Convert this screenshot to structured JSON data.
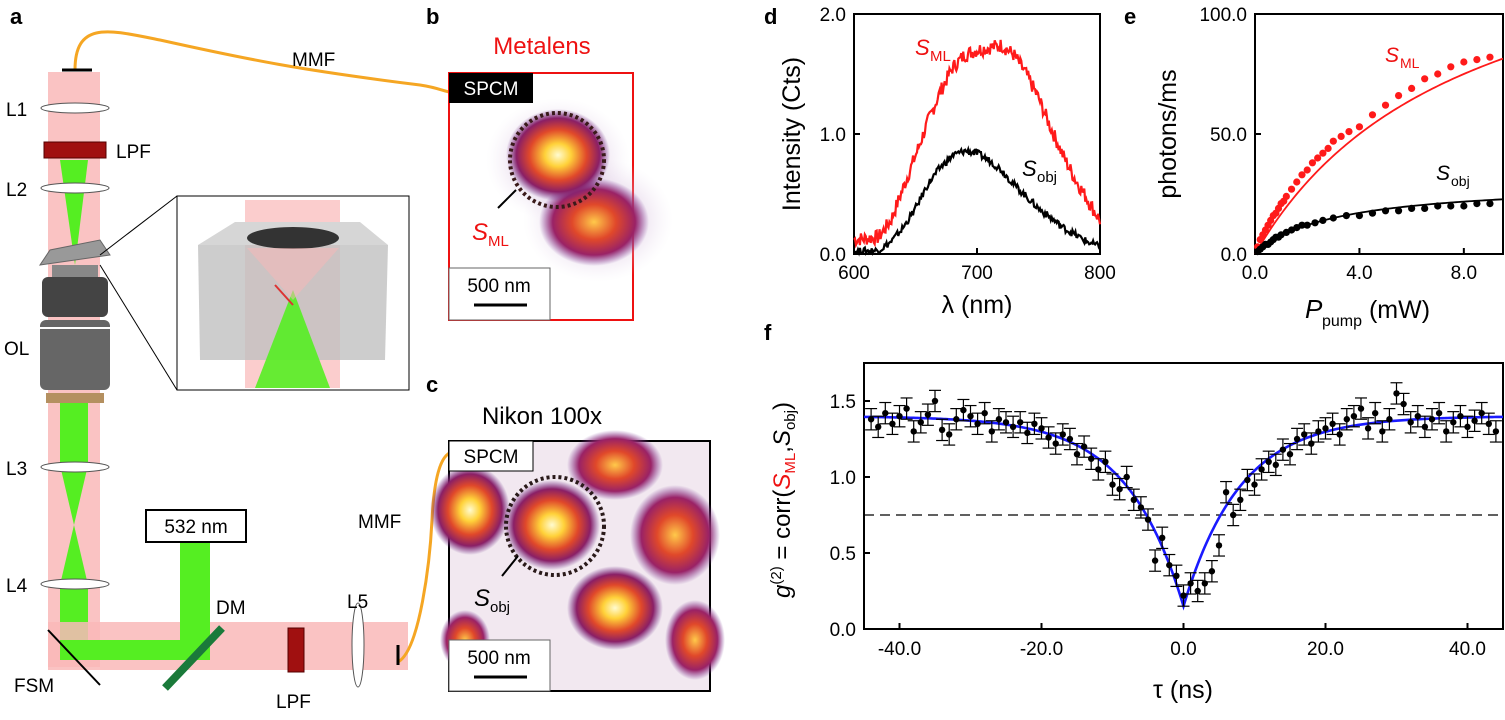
{
  "panels": {
    "a": "a",
    "b": "b",
    "c": "c",
    "d": "d",
    "e": "e",
    "f": "f"
  },
  "setup": {
    "lenses": [
      "L1",
      "L2",
      "L3",
      "L4",
      "L5"
    ],
    "lpf_top": "LPF",
    "lpf_bottom": "LPF",
    "ol": "OL",
    "mmf_top": "MMF",
    "mmf_bottom": "MMF",
    "laser": "532 nm",
    "dm": "DM",
    "fsm": "FSM"
  },
  "image_b": {
    "title": "Metalens",
    "spcm": "SPCM",
    "s_main": "S",
    "s_sub": "ML",
    "scalebar": "500 nm"
  },
  "image_c": {
    "title": "Nikon 100x",
    "spcm": "SPCM",
    "s_main": "S",
    "s_sub": "obj",
    "scalebar": "500 nm"
  },
  "chart_data": [
    {
      "panel": "d",
      "type": "line",
      "xlabel": "λ (nm)",
      "ylabel": "Intensity (Cts)",
      "xlim": [
        600,
        800
      ],
      "ylim": [
        0,
        2.0
      ],
      "xticks": [
        "600",
        "700",
        "800"
      ],
      "yticks": [
        "0.0",
        "1.0",
        "2.0"
      ],
      "series": [
        {
          "name": "S_ML",
          "label_main": "S",
          "label_sub": "ML",
          "color": "#ff1a1a",
          "x": [
            600,
            620,
            630,
            640,
            650,
            660,
            670,
            680,
            690,
            700,
            710,
            720,
            730,
            740,
            750,
            760,
            770,
            780,
            790,
            800
          ],
          "y": [
            0.12,
            0.14,
            0.28,
            0.55,
            0.82,
            1.1,
            1.35,
            1.55,
            1.66,
            1.7,
            1.72,
            1.74,
            1.66,
            1.5,
            1.3,
            1.05,
            0.82,
            0.62,
            0.45,
            0.28
          ]
        },
        {
          "name": "S_obj",
          "label_main": "S",
          "label_sub": "obj",
          "color": "#000000",
          "x": [
            600,
            620,
            630,
            640,
            650,
            660,
            670,
            680,
            690,
            700,
            710,
            720,
            730,
            740,
            750,
            760,
            770,
            780,
            790,
            800
          ],
          "y": [
            0.02,
            0.03,
            0.1,
            0.22,
            0.38,
            0.58,
            0.72,
            0.82,
            0.86,
            0.84,
            0.78,
            0.7,
            0.58,
            0.48,
            0.38,
            0.3,
            0.22,
            0.16,
            0.1,
            0.06
          ]
        }
      ]
    },
    {
      "panel": "e",
      "type": "scatter",
      "xlabel_main": "P",
      "xlabel_sub": "pump",
      "xlabel_unit": " (mW)",
      "ylabel": "photons/ms",
      "xlim": [
        0,
        9.5
      ],
      "ylim": [
        0,
        100
      ],
      "xticks": [
        "0.0",
        "4.0",
        "8.0"
      ],
      "yticks": [
        "0.0",
        "50.0",
        "100.0"
      ],
      "series": [
        {
          "name": "S_ML",
          "label_main": "S",
          "label_sub": "ML",
          "color": "#ff1a1a",
          "x": [
            0.1,
            0.2,
            0.3,
            0.4,
            0.5,
            0.6,
            0.7,
            0.8,
            0.9,
            1.0,
            1.1,
            1.2,
            1.4,
            1.6,
            1.8,
            2.0,
            2.2,
            2.4,
            2.6,
            2.8,
            3.0,
            3.3,
            3.6,
            4.0,
            4.5,
            5.0,
            5.5,
            6.0,
            6.5,
            7.0,
            7.5,
            8.0,
            8.5,
            9.0
          ],
          "y": [
            3,
            6,
            8,
            10,
            12,
            14,
            16,
            17,
            19,
            21,
            22,
            24,
            27,
            30,
            33,
            35,
            38,
            40,
            42,
            44,
            47,
            49,
            51,
            53,
            58,
            62,
            66,
            69,
            73,
            75,
            78,
            80,
            81,
            82
          ],
          "fit": {
            "Imax": 150,
            "Psat": 8.0
          }
        },
        {
          "name": "S_obj",
          "label_main": "S",
          "label_sub": "obj",
          "color": "#000000",
          "x": [
            0.1,
            0.2,
            0.3,
            0.4,
            0.5,
            0.6,
            0.7,
            0.8,
            0.9,
            1.0,
            1.2,
            1.4,
            1.6,
            1.8,
            2.0,
            2.3,
            2.6,
            3.0,
            3.5,
            4.0,
            4.5,
            5.0,
            5.5,
            6.0,
            6.5,
            7.0,
            7.5,
            8.0,
            8.5,
            9.0
          ],
          "y": [
            1,
            2,
            3,
            4,
            4,
            5,
            6,
            7,
            7,
            8,
            9,
            10,
            11,
            12,
            12,
            13,
            14,
            15,
            16,
            16,
            17,
            18,
            18,
            19,
            19,
            20,
            20,
            20,
            21,
            21
          ],
          "fit": {
            "Imax": 30,
            "Psat": 3.0
          }
        }
      ]
    },
    {
      "panel": "f",
      "type": "scatter",
      "xlabel": "τ (ns)",
      "ylabel_parts": [
        "g",
        "(2)",
        " = corr(",
        "S",
        "ML",
        ",",
        "S",
        "obj",
        ")"
      ],
      "xlim": [
        -45,
        45
      ],
      "ylim": [
        0,
        1.75
      ],
      "xticks": [
        "-40.0",
        "-20.0",
        "0.0",
        "20.0",
        "40.0"
      ],
      "yticks": [
        "0.0",
        "0.5",
        "1.0",
        "1.5"
      ],
      "threshold": 0.75,
      "fit": {
        "A": 1.4,
        "depth": 1.25,
        "tau": 8.0,
        "color": "#1a1aff"
      },
      "errorbar": 0.07,
      "x": [
        -44,
        -43,
        -42,
        -41,
        -40,
        -39,
        -38,
        -37,
        -36,
        -35,
        -34,
        -33,
        -32,
        -31,
        -30,
        -29,
        -28,
        -27,
        -26,
        -25,
        -24,
        -23,
        -22,
        -21,
        -20,
        -19,
        -18,
        -17,
        -16,
        -15,
        -14,
        -13,
        -12,
        -11,
        -10,
        -9,
        -8,
        -7,
        -6,
        -5,
        -4,
        -3,
        -2,
        -1,
        0,
        1,
        2,
        3,
        4,
        5,
        6,
        7,
        8,
        9,
        10,
        11,
        12,
        13,
        14,
        15,
        16,
        17,
        18,
        19,
        20,
        21,
        22,
        23,
        24,
        25,
        26,
        27,
        28,
        29,
        30,
        31,
        32,
        33,
        34,
        35,
        36,
        37,
        38,
        39,
        40,
        41,
        42,
        43,
        44
      ],
      "y": [
        1.38,
        1.33,
        1.42,
        1.35,
        1.4,
        1.45,
        1.3,
        1.36,
        1.41,
        1.5,
        1.31,
        1.28,
        1.38,
        1.44,
        1.4,
        1.35,
        1.42,
        1.3,
        1.38,
        1.36,
        1.33,
        1.36,
        1.29,
        1.35,
        1.32,
        1.26,
        1.22,
        1.28,
        1.25,
        1.15,
        1.2,
        1.12,
        1.05,
        1.1,
        0.95,
        0.92,
        1.0,
        0.85,
        0.8,
        0.72,
        0.45,
        0.6,
        0.42,
        0.35,
        0.22,
        0.3,
        0.25,
        0.3,
        0.38,
        0.55,
        0.9,
        0.75,
        0.85,
        0.98,
        0.95,
        1.05,
        1.1,
        1.08,
        1.18,
        1.15,
        1.25,
        1.28,
        1.22,
        1.3,
        1.32,
        1.35,
        1.28,
        1.38,
        1.4,
        1.45,
        1.32,
        1.42,
        1.3,
        1.38,
        1.55,
        1.48,
        1.36,
        1.4,
        1.33,
        1.38,
        1.42,
        1.3,
        1.36,
        1.4,
        1.33,
        1.37,
        1.42,
        1.35,
        1.3
      ]
    }
  ]
}
